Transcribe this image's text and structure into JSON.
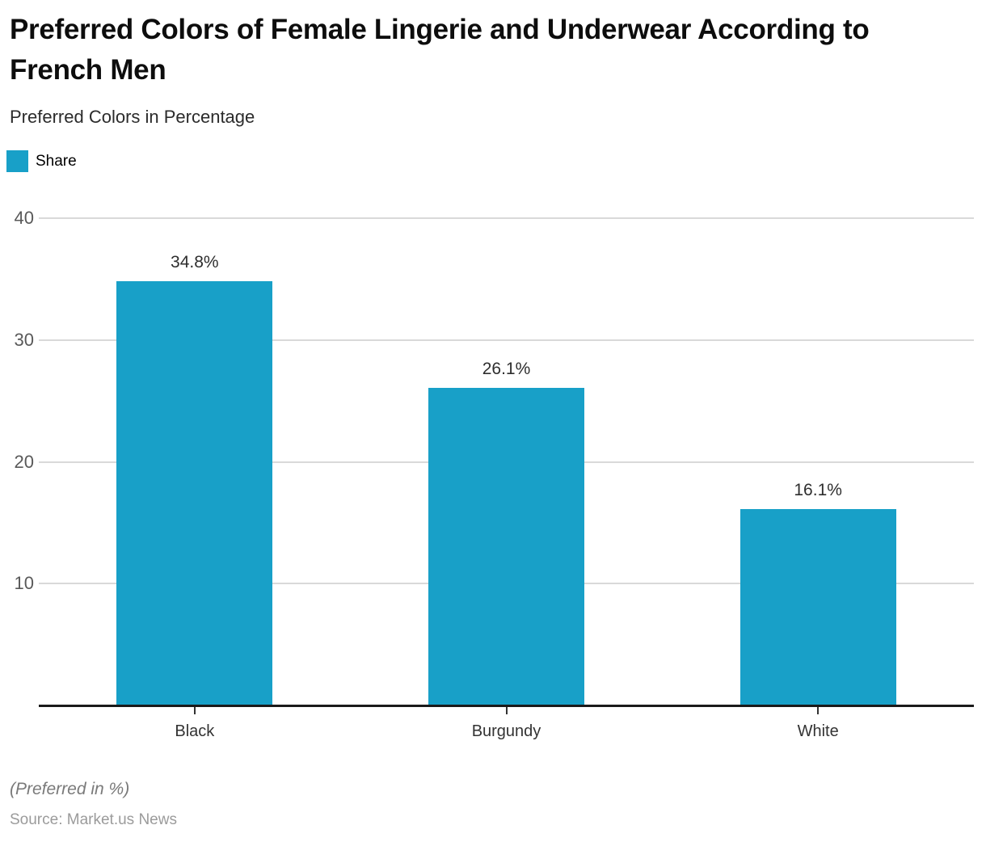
{
  "header": {
    "title": "Preferred Colors of Female Lingerie and Underwear According to French Men",
    "subtitle": "Preferred Colors in Percentage"
  },
  "legend": {
    "label": "Share",
    "swatch_color": "#18a0c8",
    "position": "top-left"
  },
  "footer": {
    "note": "(Preferred in %)",
    "source": "Source: Market.us News"
  },
  "chart_data": {
    "type": "bar",
    "title": "Preferred Colors of Female Lingerie and Underwear According to French Men",
    "subtitle": "Preferred Colors in Percentage",
    "categories": [
      "Black",
      "Burgundy",
      "White"
    ],
    "values": [
      34.8,
      26.1,
      16.1
    ],
    "value_labels": [
      "34.8%",
      "26.1%",
      "16.1%"
    ],
    "series_name": "Share",
    "bar_color": "#18a0c8",
    "xlabel": "",
    "ylabel": "",
    "ylim": [
      0,
      40
    ],
    "yticks": [
      10,
      20,
      30,
      40
    ],
    "grid": "horizontal gridlines on",
    "gridline_color": "#d9d9d9",
    "axis_line_color": "#1a1a1a",
    "legend_position": "top-left"
  }
}
